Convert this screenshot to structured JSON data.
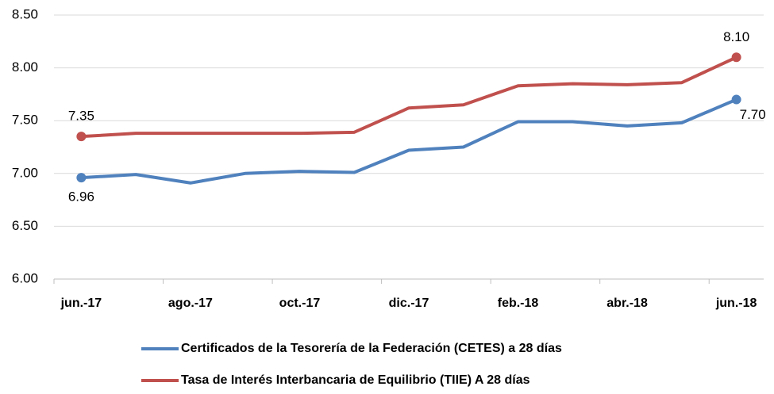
{
  "chart_data": {
    "type": "line",
    "categories": [
      "jun.-17",
      null,
      "ago.-17",
      null,
      "oct.-17",
      null,
      "dic.-17",
      null,
      "feb.-18",
      null,
      "abr.-18",
      null,
      "jun.-18"
    ],
    "series": [
      {
        "name": "Certificados de la Tesorería de la Federación (CETES) a 28 días",
        "color": "#4f81bd",
        "values": [
          6.96,
          6.99,
          6.91,
          7.0,
          7.02,
          7.01,
          7.22,
          7.25,
          7.49,
          7.49,
          7.45,
          7.48,
          7.7
        ],
        "value_labels": [
          "6.96",
          null,
          null,
          null,
          null,
          null,
          null,
          null,
          null,
          null,
          null,
          null,
          "7.70"
        ]
      },
      {
        "name": "Tasa de Interés Interbancaria de Equilibrio (TIIE) A 28 días",
        "color": "#c0504d",
        "values": [
          7.35,
          7.38,
          7.38,
          7.38,
          7.38,
          7.39,
          7.62,
          7.65,
          7.83,
          7.85,
          7.84,
          7.86,
          8.1
        ],
        "value_labels": [
          "7.35",
          null,
          null,
          null,
          null,
          null,
          null,
          null,
          null,
          null,
          null,
          null,
          "8.10"
        ]
      }
    ],
    "ylim": [
      6,
      8.5
    ],
    "yticks": [
      {
        "value": 6,
        "label": "6.00"
      },
      {
        "value": 6.5,
        "label": "6.50"
      },
      {
        "value": 7,
        "label": "7.00"
      },
      {
        "value": 7.5,
        "label": "7.50"
      },
      {
        "value": 8,
        "label": "8.00"
      },
      {
        "value": 8.5,
        "label": "8.50"
      }
    ],
    "grid": true
  }
}
